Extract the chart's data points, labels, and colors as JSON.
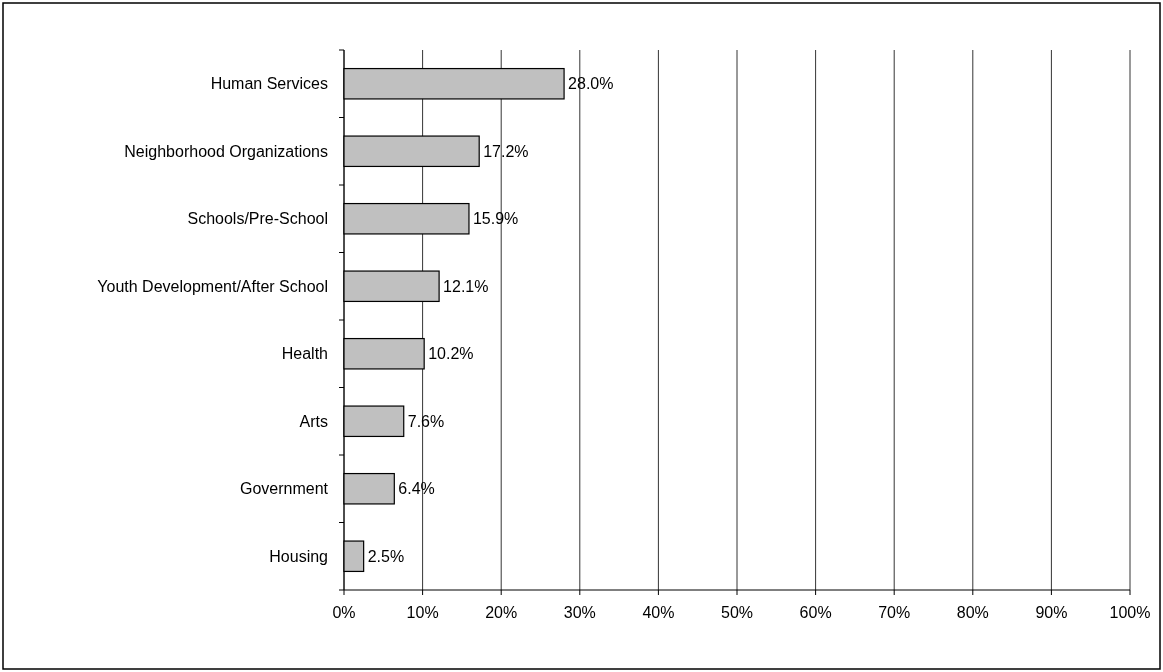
{
  "chart_data": {
    "type": "bar",
    "orientation": "horizontal",
    "categories": [
      "Human Services",
      "Neighborhood Organizations",
      "Schools/Pre-School",
      "Youth Development/After School",
      "Health",
      "Arts",
      "Government",
      "Housing"
    ],
    "values": [
      28.0,
      17.2,
      15.9,
      12.1,
      10.2,
      7.6,
      6.4,
      2.5
    ],
    "value_labels": [
      "28.0%",
      "17.2%",
      "15.9%",
      "12.1%",
      "10.2%",
      "7.6%",
      "6.4%",
      "2.5%"
    ],
    "color": "#c0c0c0",
    "xlim": [
      0,
      100
    ],
    "xticks": [
      {
        "value": 0,
        "label": "0%"
      },
      {
        "value": 10,
        "label": "10%"
      },
      {
        "value": 20,
        "label": "20%"
      },
      {
        "value": 30,
        "label": "30%"
      },
      {
        "value": 40,
        "label": "40%"
      },
      {
        "value": 50,
        "label": "50%"
      },
      {
        "value": 60,
        "label": "60%"
      },
      {
        "value": 70,
        "label": "70%"
      },
      {
        "value": 80,
        "label": "80%"
      },
      {
        "value": 90,
        "label": "90%"
      },
      {
        "value": 100,
        "label": "100%"
      }
    ],
    "grid": "x"
  }
}
